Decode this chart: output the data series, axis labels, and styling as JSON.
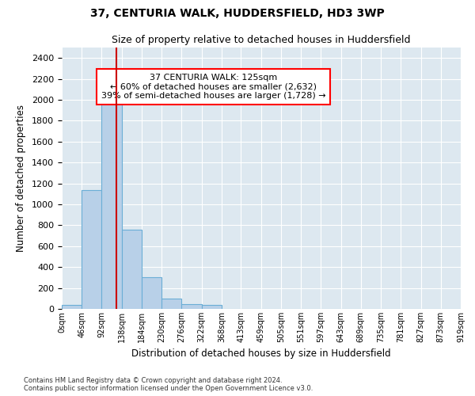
{
  "title1": "37, CENTURIA WALK, HUDDERSFIELD, HD3 3WP",
  "title2": "Size of property relative to detached houses in Huddersfield",
  "xlabel": "Distribution of detached houses by size in Huddersfield",
  "ylabel": "Number of detached properties",
  "footer1": "Contains HM Land Registry data © Crown copyright and database right 2024.",
  "footer2": "Contains public sector information licensed under the Open Government Licence v3.0.",
  "annotation_line1": "37 CENTURIA WALK: 125sqm",
  "annotation_line2": "← 60% of detached houses are smaller (2,632)",
  "annotation_line3": "39% of semi-detached houses are larger (1,728) →",
  "property_size": 125,
  "bar_color": "#b8d0e8",
  "bar_edge_color": "#6baed6",
  "redline_color": "#cc0000",
  "bg_color": "#dde8f0",
  "grid_color": "#ffffff",
  "bin_edges": [
    0,
    46,
    92,
    138,
    184,
    230,
    276,
    322,
    368,
    413,
    459,
    505,
    551,
    597,
    643,
    689,
    735,
    781,
    827,
    873,
    919
  ],
  "bin_labels": [
    "0sqm",
    "46sqm",
    "92sqm",
    "138sqm",
    "184sqm",
    "230sqm",
    "276sqm",
    "322sqm",
    "368sqm",
    "413sqm",
    "459sqm",
    "505sqm",
    "551sqm",
    "597sqm",
    "643sqm",
    "689sqm",
    "735sqm",
    "781sqm",
    "827sqm",
    "873sqm",
    "919sqm"
  ],
  "bar_heights": [
    40,
    1140,
    1960,
    760,
    300,
    100,
    45,
    35,
    0,
    0,
    0,
    0,
    0,
    0,
    0,
    0,
    0,
    0,
    0,
    0
  ],
  "ylim": [
    0,
    2500
  ],
  "yticks": [
    0,
    200,
    400,
    600,
    800,
    1000,
    1200,
    1400,
    1600,
    1800,
    2000,
    2200,
    2400
  ]
}
